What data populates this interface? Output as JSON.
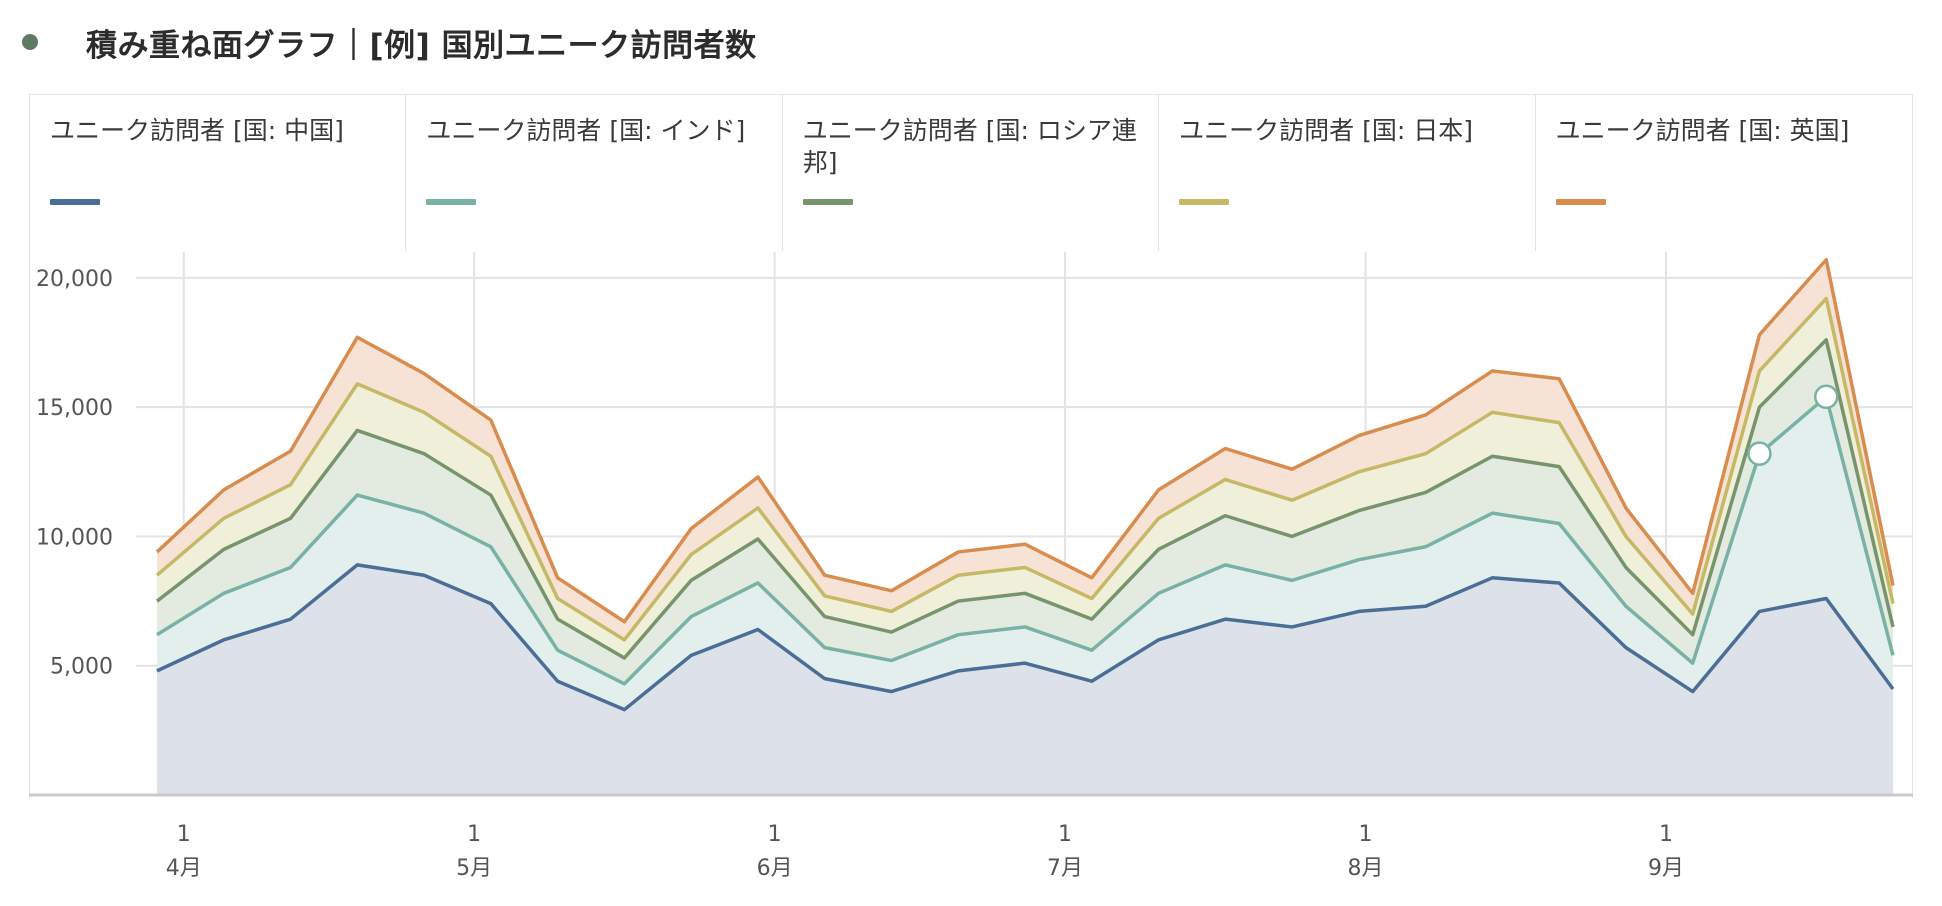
{
  "header": {
    "title": "積み重ね面グラフ｜[例] 国別ユニーク訪問者数"
  },
  "colors": {
    "status_dot": "#5f7a63",
    "grid": "#e3e3e3",
    "axis": "#c9c9c9",
    "marker_fill": "#ffffff"
  },
  "chart_data": {
    "type": "area",
    "stacked": true,
    "title": "積み重ね面グラフ｜[例] 国別ユニーク訪問者数",
    "ylim": [
      0,
      21000
    ],
    "y_ticks": [
      5000,
      10000,
      15000,
      20000
    ],
    "y_tick_labels": [
      "5,000",
      "10,000",
      "15,000",
      "20,000"
    ],
    "x_points": 27,
    "month_ticks": [
      {
        "index": 0.4,
        "day": "1",
        "month": "4月"
      },
      {
        "index": 4.75,
        "day": "1",
        "month": "5月"
      },
      {
        "index": 9.25,
        "day": "1",
        "month": "6月"
      },
      {
        "index": 13.6,
        "day": "1",
        "month": "7月"
      },
      {
        "index": 18.1,
        "day": "1",
        "month": "8月"
      },
      {
        "index": 22.6,
        "day": "1",
        "month": "9月"
      }
    ],
    "series": [
      {
        "name": "ユニーク訪問者 [国: 中国]",
        "color": "#4a6e96",
        "fill": "#dde2ea",
        "values": [
          4800,
          6000,
          6800,
          8900,
          8500,
          7400,
          4400,
          3300,
          5400,
          6400,
          4500,
          4000,
          4800,
          5100,
          4400,
          6000,
          6800,
          6500,
          7100,
          7300,
          8400,
          8200,
          5700,
          4000,
          7100,
          7600,
          4100
        ]
      },
      {
        "name": "ユニーク訪問者 [国: インド]",
        "color": "#79b2a5",
        "fill": "#e3efed",
        "values": [
          1400,
          1800,
          2000,
          2700,
          2400,
          2200,
          1200,
          1000,
          1500,
          1800,
          1200,
          1200,
          1400,
          1400,
          1200,
          1800,
          2100,
          1800,
          2000,
          2300,
          2500,
          2300,
          1600,
          1100,
          6100,
          7800,
          1300
        ]
      },
      {
        "name": "ユニーク訪問者 [国: ロシア連邦]",
        "color": "#77946d",
        "fill": "#e3eadf",
        "values": [
          1300,
          1700,
          1900,
          2500,
          2300,
          2000,
          1200,
          1000,
          1400,
          1700,
          1200,
          1100,
          1300,
          1300,
          1200,
          1700,
          1900,
          1700,
          1900,
          2100,
          2200,
          2200,
          1500,
          1100,
          1800,
          2200,
          1100
        ]
      },
      {
        "name": "ユニーク訪問者 [国: 日本]",
        "color": "#c5b867",
        "fill": "#f0efd9",
        "values": [
          1000,
          1200,
          1300,
          1800,
          1600,
          1500,
          800,
          700,
          1000,
          1200,
          800,
          800,
          1000,
          1000,
          800,
          1200,
          1400,
          1400,
          1500,
          1500,
          1700,
          1700,
          1200,
          800,
          1400,
          1600,
          900
        ]
      },
      {
        "name": "ユニーク訪問者 [国: 英国]",
        "color": "#d88c4e",
        "fill": "#f6e3d6",
        "values": [
          900,
          1100,
          1300,
          1800,
          1500,
          1400,
          800,
          700,
          1000,
          1200,
          800,
          800,
          900,
          900,
          800,
          1100,
          1200,
          1200,
          1400,
          1500,
          1600,
          1700,
          1100,
          800,
          1400,
          1500,
          700
        ]
      }
    ],
    "highlighted_points": [
      {
        "series": 1,
        "index": 24
      },
      {
        "series": 1,
        "index": 25
      }
    ]
  }
}
